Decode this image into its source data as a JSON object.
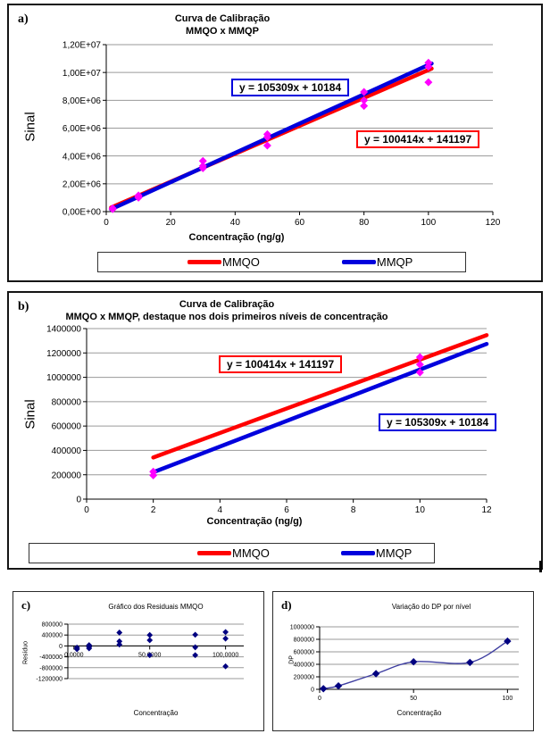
{
  "colors": {
    "mmqo_red": "#ff0000",
    "mmqp_blue": "#0000dd",
    "scatter_magenta": "#ff00ff",
    "navy": "#000080",
    "d_line_blue": "#3d3da0",
    "gridline": "#9a9a9a"
  },
  "chart_data": [
    {
      "id": "a",
      "type": "scatter",
      "panel_label": "a)",
      "title_lines": [
        "Curva de Calibração",
        "MMQO x MMQP"
      ],
      "ylabel": "Sinal",
      "xlabel": "Concentração (ng/g)",
      "xlim": [
        0,
        120
      ],
      "ylim": [
        0,
        12000000
      ],
      "x_ticks": [
        {
          "v": 0,
          "label": "0"
        },
        {
          "v": 20,
          "label": "20"
        },
        {
          "v": 40,
          "label": "40"
        },
        {
          "v": 60,
          "label": "60"
        },
        {
          "v": 80,
          "label": "80"
        },
        {
          "v": 100,
          "label": "100"
        },
        {
          "v": 120,
          "label": "120"
        }
      ],
      "y_ticks": [
        {
          "v": 0,
          "label": "0,00E+00"
        },
        {
          "v": 2000000,
          "label": "2,00E+06"
        },
        {
          "v": 4000000,
          "label": "4,00E+06"
        },
        {
          "v": 6000000,
          "label": "6,00E+06"
        },
        {
          "v": 8000000,
          "label": "8,00E+06"
        },
        {
          "v": 10000000,
          "label": "1,00E+07"
        },
        {
          "v": 12000000,
          "label": "1,20E+07"
        }
      ],
      "scatter_color": "#ff00ff",
      "scatter_points": [
        [
          2,
          240000
        ],
        [
          2,
          180000
        ],
        [
          10,
          1165000
        ],
        [
          10,
          1080000
        ],
        [
          10,
          1000000
        ],
        [
          30,
          3640000
        ],
        [
          30,
          3280000
        ],
        [
          30,
          3120000
        ],
        [
          50,
          5560000
        ],
        [
          50,
          5350000
        ],
        [
          50,
          4750000
        ],
        [
          80,
          8600000
        ],
        [
          80,
          8000000
        ],
        [
          80,
          7600000
        ],
        [
          100,
          10700000
        ],
        [
          100,
          10420000
        ],
        [
          100,
          9300000
        ]
      ],
      "trendlines": [
        {
          "name": "MMQO",
          "equation": "y = 100414x + 141197",
          "slope": 100414,
          "intercept": 141197,
          "color": "#ff0000",
          "x_start": 1.5,
          "x_end": 101
        },
        {
          "name": "MMQP",
          "equation": "y = 105309x + 10184",
          "slope": 105309,
          "intercept": 10184,
          "color": "#0000dd",
          "x_start": 1.5,
          "x_end": 101
        }
      ],
      "annotations": [
        {
          "text": "y = 105309x + 10184",
          "border_color": "#0000dd"
        },
        {
          "text": "y = 100414x + 141197",
          "border_color": "#ff0000"
        }
      ],
      "legend": [
        {
          "label": "MMQO",
          "color": "#ff0000"
        },
        {
          "label": "MMQP",
          "color": "#0000dd"
        }
      ]
    },
    {
      "id": "b",
      "type": "scatter",
      "panel_label": "b)",
      "title_lines": [
        "Curva de Calibração",
        "MMQO x MMQP, destaque nos dois primeiros níveis de concentração"
      ],
      "ylabel": "Sinal",
      "xlabel": "Concentração (ng/g)",
      "xlim": [
        0,
        12
      ],
      "ylim": [
        0,
        1400000
      ],
      "x_ticks": [
        {
          "v": 0,
          "label": "0"
        },
        {
          "v": 2,
          "label": "2"
        },
        {
          "v": 4,
          "label": "4"
        },
        {
          "v": 6,
          "label": "6"
        },
        {
          "v": 8,
          "label": "8"
        },
        {
          "v": 10,
          "label": "10"
        },
        {
          "v": 12,
          "label": "12"
        }
      ],
      "y_ticks": [
        {
          "v": 0,
          "label": "0"
        },
        {
          "v": 200000,
          "label": "200000"
        },
        {
          "v": 400000,
          "label": "400000"
        },
        {
          "v": 600000,
          "label": "600000"
        },
        {
          "v": 800000,
          "label": "800000"
        },
        {
          "v": 1000000,
          "label": "1000000"
        },
        {
          "v": 1200000,
          "label": "1200000"
        },
        {
          "v": 1400000,
          "label": "1400000"
        }
      ],
      "scatter_color": "#ff00ff",
      "scatter_points": [
        [
          2,
          225000
        ],
        [
          2,
          195000
        ],
        [
          10,
          1165000
        ],
        [
          10,
          1105000
        ],
        [
          10,
          1040000
        ]
      ],
      "trendlines": [
        {
          "name": "MMQO",
          "equation": "y = 100414x + 141197",
          "slope": 100414,
          "intercept": 141197,
          "color": "#ff0000",
          "x_start": 2,
          "x_end": 12
        },
        {
          "name": "MMQP",
          "equation": "y = 105309x + 10184",
          "slope": 105309,
          "intercept": 10184,
          "color": "#0000dd",
          "x_start": 2,
          "x_end": 12
        }
      ],
      "annotations": [
        {
          "text": "y = 100414x + 141197",
          "border_color": "#ff0000"
        },
        {
          "text": "y = 105309x + 10184",
          "border_color": "#0000dd"
        }
      ],
      "legend": [
        {
          "label": "MMQO",
          "color": "#ff0000"
        },
        {
          "label": "MMQP",
          "color": "#0000dd"
        }
      ]
    },
    {
      "id": "c",
      "type": "scatter",
      "panel_label": "c)",
      "title_lines": [
        "Gráfico dos Residuais MMQO"
      ],
      "ylabel": "Resíduo",
      "xlabel": "Concentração",
      "xlim": [
        -4,
        112
      ],
      "ylim": [
        -1200000,
        800000
      ],
      "x_axis_at": 0,
      "x_ticks": [
        {
          "v": 0,
          "label": "0,0000"
        },
        {
          "v": 50,
          "label": "50,0000"
        },
        {
          "v": 100,
          "label": "100,0000"
        }
      ],
      "y_ticks": [
        {
          "v": 800000,
          "label": "800000"
        },
        {
          "v": 400000,
          "label": "400000"
        },
        {
          "v": 0,
          "label": "0"
        },
        {
          "v": -400000,
          "label": "-400000"
        },
        {
          "v": -800000,
          "label": "-800000"
        },
        {
          "v": -1200000,
          "label": "-1200000"
        }
      ],
      "scatter_color": "#000080",
      "scatter_points": [
        [
          2,
          -60000
        ],
        [
          2,
          -120000
        ],
        [
          10,
          30000
        ],
        [
          10,
          -30000
        ],
        [
          10,
          -90000
        ],
        [
          30,
          490000
        ],
        [
          30,
          170000
        ],
        [
          30,
          50000
        ],
        [
          50,
          400000
        ],
        [
          50,
          210000
        ],
        [
          50,
          -340000
        ],
        [
          80,
          410000
        ],
        [
          80,
          -50000
        ],
        [
          80,
          -340000
        ],
        [
          100,
          510000
        ],
        [
          100,
          270000
        ],
        [
          100,
          -750000
        ]
      ]
    },
    {
      "id": "d",
      "type": "line",
      "panel_label": "d)",
      "title_lines": [
        "Variação do DP por nível"
      ],
      "ylabel": "DP",
      "xlabel": "Concentração",
      "xlim": [
        0,
        106
      ],
      "ylim": [
        0,
        1000000
      ],
      "x_ticks": [
        {
          "v": 0,
          "label": "0"
        },
        {
          "v": 50,
          "label": "50"
        },
        {
          "v": 100,
          "label": "100"
        }
      ],
      "y_ticks": [
        {
          "v": 0,
          "label": "0"
        },
        {
          "v": 200000,
          "label": "200000"
        },
        {
          "v": 400000,
          "label": "400000"
        },
        {
          "v": 600000,
          "label": "600000"
        },
        {
          "v": 800000,
          "label": "800000"
        },
        {
          "v": 1000000,
          "label": "1000000"
        }
      ],
      "line_series": {
        "x": [
          2,
          10,
          30,
          50,
          80,
          100
        ],
        "y": [
          10000,
          55000,
          250000,
          440000,
          430000,
          770000
        ],
        "color": "#3d3da0",
        "marker_color": "#000080",
        "smooth": true
      }
    }
  ]
}
